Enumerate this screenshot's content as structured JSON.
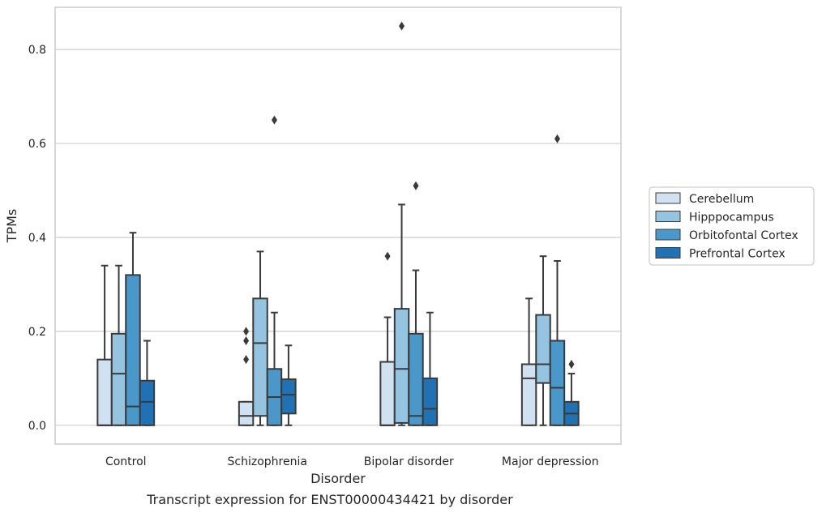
{
  "chart_data": {
    "type": "box",
    "caption": "Transcript expression for ENST00000434421 by disorder",
    "xlabel": "Disorder",
    "ylabel": "TPMs",
    "ylim": [
      -0.04,
      0.89
    ],
    "yticks": [
      0.0,
      0.2,
      0.4,
      0.6,
      0.8
    ],
    "ytick_labels": [
      "0.0",
      "0.2",
      "0.4",
      "0.6",
      "0.8"
    ],
    "grid": "horizontal",
    "legend_placement": "right",
    "categories": [
      "Control",
      "Schizophrenia",
      "Bipolar disorder",
      "Major depression"
    ],
    "series": [
      {
        "name": "Cerebellum",
        "color": "#d0e1f2",
        "boxes": [
          {
            "whislo": 0.0,
            "q1": 0.0,
            "med": 0.0,
            "q3": 0.14,
            "whishi": 0.34,
            "fliers": []
          },
          {
            "whislo": 0.0,
            "q1": 0.0,
            "med": 0.02,
            "q3": 0.05,
            "whishi": 0.05,
            "fliers": [
              0.2,
              0.18,
              0.14
            ]
          },
          {
            "whislo": 0.0,
            "q1": 0.0,
            "med": 0.0,
            "q3": 0.135,
            "whishi": 0.23,
            "fliers": [
              0.36
            ]
          },
          {
            "whislo": 0.0,
            "q1": 0.0,
            "med": 0.1,
            "q3": 0.13,
            "whishi": 0.27,
            "fliers": []
          }
        ]
      },
      {
        "name": "Hipppocampus",
        "color": "#94c4df",
        "boxes": [
          {
            "whislo": 0.0,
            "q1": 0.0,
            "med": 0.11,
            "q3": 0.195,
            "whishi": 0.34,
            "fliers": []
          },
          {
            "whislo": 0.0,
            "q1": 0.02,
            "med": 0.175,
            "q3": 0.27,
            "whishi": 0.37,
            "fliers": []
          },
          {
            "whislo": 0.0,
            "q1": 0.005,
            "med": 0.12,
            "q3": 0.248,
            "whishi": 0.47,
            "fliers": [
              0.85
            ]
          },
          {
            "whislo": 0.0,
            "q1": 0.09,
            "med": 0.13,
            "q3": 0.235,
            "whishi": 0.36,
            "fliers": []
          }
        ]
      },
      {
        "name": "Orbitofontal Cortex",
        "color": "#4a98c9",
        "boxes": [
          {
            "whislo": 0.0,
            "q1": 0.0,
            "med": 0.04,
            "q3": 0.32,
            "whishi": 0.41,
            "fliers": []
          },
          {
            "whislo": 0.0,
            "q1": 0.0,
            "med": 0.06,
            "q3": 0.12,
            "whishi": 0.24,
            "fliers": [
              0.65
            ]
          },
          {
            "whislo": 0.0,
            "q1": 0.0,
            "med": 0.02,
            "q3": 0.195,
            "whishi": 0.33,
            "fliers": [
              0.51
            ]
          },
          {
            "whislo": 0.0,
            "q1": 0.0,
            "med": 0.08,
            "q3": 0.18,
            "whishi": 0.35,
            "fliers": [
              0.61
            ]
          }
        ]
      },
      {
        "name": "Prefrontal Cortex",
        "color": "#2171b5",
        "boxes": [
          {
            "whislo": 0.0,
            "q1": 0.0,
            "med": 0.05,
            "q3": 0.095,
            "whishi": 0.18,
            "fliers": []
          },
          {
            "whislo": 0.0,
            "q1": 0.025,
            "med": 0.065,
            "q3": 0.098,
            "whishi": 0.17,
            "fliers": []
          },
          {
            "whislo": 0.0,
            "q1": 0.0,
            "med": 0.035,
            "q3": 0.1,
            "whishi": 0.24,
            "fliers": []
          },
          {
            "whislo": 0.0,
            "q1": 0.0,
            "med": 0.025,
            "q3": 0.05,
            "whishi": 0.11,
            "fliers": [
              0.13
            ]
          }
        ]
      }
    ]
  }
}
